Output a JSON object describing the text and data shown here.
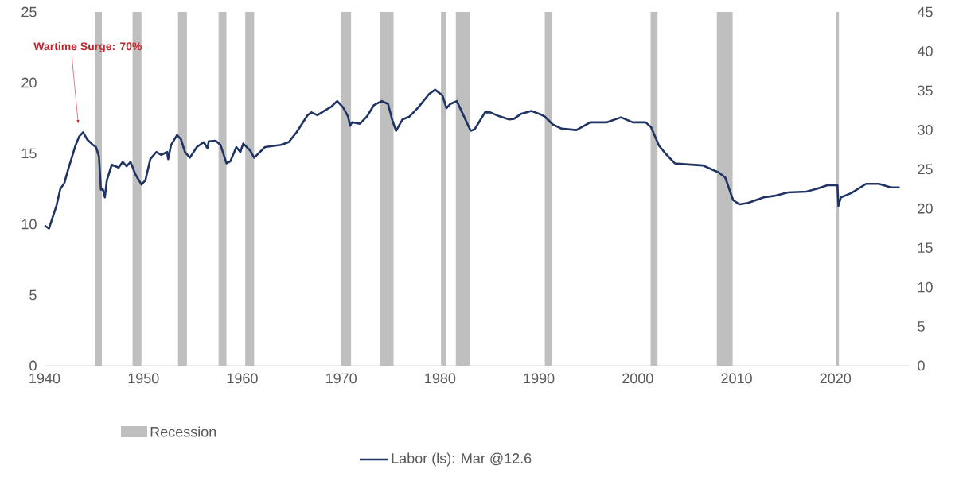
{
  "chart_data": {
    "type": "line",
    "xlim": [
      1940,
      2027.5
    ],
    "xticks": [
      1940,
      1950,
      1960,
      1970,
      1980,
      1990,
      2000,
      2010,
      2020
    ],
    "ylim": [
      0,
      25
    ],
    "yticks": [
      0,
      5,
      10,
      15,
      20,
      25
    ],
    "y2lim": [
      0,
      45
    ],
    "y2ticks": [
      0,
      5,
      10,
      15,
      20,
      25,
      30,
      35,
      40,
      45
    ],
    "legend": "bottom",
    "annotations": [
      "Wartime Surge: 70%"
    ],
    "bands": [
      {
        "axis": "x",
        "from": 1945.1,
        "to": 1945.8,
        "label": "Recession",
        "color": "#bfbfbf"
      },
      {
        "axis": "x",
        "from": 1948.9,
        "to": 1949.8,
        "color": "#bfbfbf"
      },
      {
        "axis": "x",
        "from": 1953.5,
        "to": 1954.4,
        "color": "#bfbfbf"
      },
      {
        "axis": "x",
        "from": 1957.6,
        "to": 1958.4,
        "color": "#bfbfbf"
      },
      {
        "axis": "x",
        "from": 1960.3,
        "to": 1961.2,
        "color": "#bfbfbf"
      },
      {
        "axis": "x",
        "from": 1970.0,
        "to": 1971.0,
        "color": "#bfbfbf"
      },
      {
        "axis": "x",
        "from": 1973.9,
        "to": 1975.3,
        "color": "#bfbfbf"
      },
      {
        "axis": "x",
        "from": 1980.1,
        "to": 1980.6,
        "color": "#bfbfbf"
      },
      {
        "axis": "x",
        "from": 1981.6,
        "to": 1983.0,
        "color": "#bfbfbf"
      },
      {
        "axis": "x",
        "from": 1990.6,
        "to": 1991.3,
        "color": "#bfbfbf"
      },
      {
        "axis": "x",
        "from": 2001.3,
        "to": 2002.0,
        "color": "#bfbfbf"
      },
      {
        "axis": "x",
        "from": 2008.0,
        "to": 2009.6,
        "color": "#bfbfbf"
      },
      {
        "axis": "x",
        "from": 2020.1,
        "to": 2020.35,
        "color": "#bfbfbf"
      }
    ],
    "series": [
      {
        "name": "Labor (ls): Mar @12.6",
        "color": "#1f3464",
        "line_style": "solid",
        "x": [
          1940.0,
          1940.45,
          1941.2,
          1941.6,
          1942.0,
          1942.4,
          1943.1,
          1943.5,
          1943.9,
          1944.3,
          1944.9,
          1945.2,
          1945.5,
          1945.7,
          1945.9,
          1946.1,
          1946.3,
          1946.8,
          1947.5,
          1947.9,
          1948.3,
          1948.7,
          1949.2,
          1949.8,
          1950.2,
          1950.7,
          1951.3,
          1951.8,
          1952.4,
          1952.5,
          1952.8,
          1953.4,
          1953.8,
          1954.2,
          1954.7,
          1955.4,
          1956.1,
          1956.5,
          1956.6,
          1957.3,
          1957.8,
          1958.4,
          1958.8,
          1959.4,
          1959.8,
          1960.1,
          1960.8,
          1961.2,
          1962.3,
          1963.9,
          1964.7,
          1965.5,
          1966.6,
          1967.0,
          1967.6,
          1968.4,
          1969.0,
          1969.6,
          1970.2,
          1970.7,
          1970.9,
          1971.1,
          1971.9,
          1972.6,
          1973.3,
          1974.1,
          1974.75,
          1975.15,
          1975.55,
          1976.2,
          1976.9,
          1977.8,
          1978.9,
          1979.5,
          1980.25,
          1980.65,
          1981.05,
          1981.7,
          1982.3,
          1983.1,
          1983.5,
          1984.55,
          1985.1,
          1985.9,
          1987.0,
          1987.5,
          1988.2,
          1989.25,
          1990.2,
          1990.6,
          1991.4,
          1992.3,
          1993.8,
          1995.2,
          1996.9,
          1998.3,
          1999.5,
          2000.8,
          2001.35,
          2002.15,
          2002.8,
          2003.75,
          2004.55,
          2006.6,
          2007.25,
          2008.2,
          2008.85,
          2009.65,
          2010.3,
          2011.15,
          2012.75,
          2013.8,
          2015.2,
          2017.05,
          2018.1,
          2019.2,
          2020.2,
          2020.3,
          2020.55,
          2021.6,
          2023.1,
          2024.4,
          2025.6,
          2026.5
        ],
        "values": [
          9.9,
          9.7,
          11.3,
          12.5,
          12.9,
          13.9,
          15.5,
          16.2,
          16.5,
          16.0,
          15.6,
          15.45,
          14.8,
          12.45,
          12.45,
          11.9,
          13.1,
          14.2,
          14.0,
          14.4,
          14.1,
          14.4,
          13.5,
          12.8,
          13.1,
          14.6,
          15.1,
          14.9,
          15.1,
          14.6,
          15.6,
          16.3,
          16.0,
          15.1,
          14.7,
          15.45,
          15.8,
          15.35,
          15.85,
          15.9,
          15.6,
          14.3,
          14.45,
          15.45,
          15.1,
          15.7,
          15.2,
          14.7,
          15.45,
          15.6,
          15.8,
          16.5,
          17.7,
          17.9,
          17.7,
          18.05,
          18.3,
          18.7,
          18.25,
          17.6,
          16.95,
          17.2,
          17.1,
          17.6,
          18.4,
          18.7,
          18.5,
          17.4,
          16.6,
          17.4,
          17.6,
          18.25,
          19.2,
          19.5,
          19.1,
          18.2,
          18.5,
          18.7,
          17.8,
          16.6,
          16.7,
          17.9,
          17.9,
          17.65,
          17.4,
          17.45,
          17.8,
          18.0,
          17.75,
          17.6,
          17.05,
          16.75,
          16.65,
          17.2,
          17.2,
          17.55,
          17.2,
          17.2,
          16.85,
          15.55,
          15.0,
          14.3,
          14.25,
          14.15,
          13.95,
          13.65,
          13.3,
          11.7,
          11.4,
          11.5,
          11.9,
          12.0,
          12.25,
          12.3,
          12.5,
          12.75,
          12.75,
          11.3,
          11.9,
          12.2,
          12.85,
          12.85,
          12.6,
          12.6
        ]
      }
    ]
  }
}
